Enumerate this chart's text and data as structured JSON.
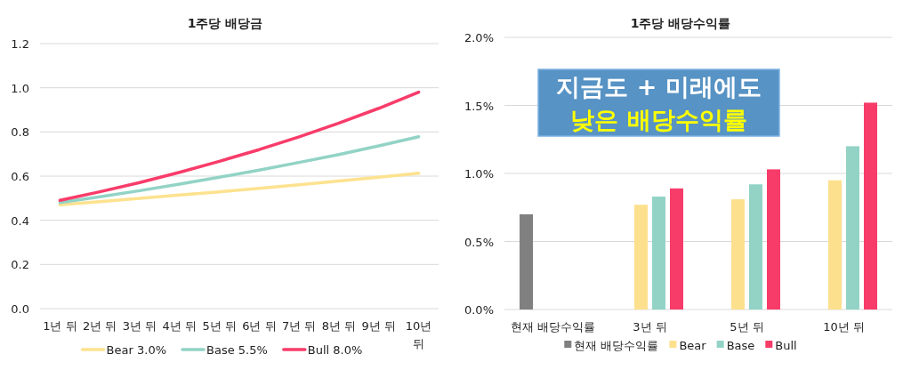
{
  "chart_data": [
    {
      "type": "line",
      "title": "1주당 배당금",
      "categories": [
        "1년 뒤",
        "2년 뒤",
        "3년 뒤",
        "4년 뒤",
        "5년 뒤",
        "6년 뒤",
        "7년 뒤",
        "8년 뒤",
        "9년 뒤",
        "10년 뒤"
      ],
      "series": [
        {
          "name": "Bear 3.0%",
          "color": "#fde28f",
          "values": [
            0.47,
            0.484,
            0.499,
            0.514,
            0.529,
            0.545,
            0.561,
            0.578,
            0.595,
            0.613
          ]
        },
        {
          "name": "Base 5.5%",
          "color": "#92d3c6",
          "values": [
            0.48,
            0.506,
            0.534,
            0.564,
            0.595,
            0.627,
            0.662,
            0.698,
            0.737,
            0.778
          ]
        },
        {
          "name": "Bull 8.0%",
          "color": "#f83c6a",
          "values": [
            0.49,
            0.529,
            0.571,
            0.617,
            0.667,
            0.72,
            0.778,
            0.84,
            0.907,
            0.98
          ]
        }
      ],
      "ylim": [
        0,
        1.2
      ],
      "yticks": [
        {
          "value": 0,
          "label": "0.0"
        },
        {
          "value": 0.2,
          "label": "0.2"
        },
        {
          "value": 0.4,
          "label": "0.4"
        },
        {
          "value": 0.6,
          "label": "0.6"
        },
        {
          "value": 0.8,
          "label": "0.8"
        },
        {
          "value": 1.0,
          "label": "1.0"
        },
        {
          "value": 1.2,
          "label": "1.2"
        }
      ],
      "grid": "y",
      "legend": "bottom",
      "marker": "none",
      "line_style": "solid"
    },
    {
      "type": "bar",
      "title": "1주당 배당수익률",
      "categories": [
        "현재 배당수익률",
        "3년 뒤",
        "5년 뒤",
        "10년 뒤"
      ],
      "series": [
        {
          "name": "현재 배당수익률",
          "color": "#808080",
          "values": [
            0.7,
            null,
            null,
            null
          ]
        },
        {
          "name": "Bear",
          "color": "#fde08e",
          "values": [
            null,
            0.77,
            0.81,
            0.95
          ]
        },
        {
          "name": "Base",
          "color": "#92d3c6",
          "values": [
            null,
            0.83,
            0.92,
            1.2
          ]
        },
        {
          "name": "Bull",
          "color": "#f83c6a",
          "values": [
            null,
            0.89,
            1.03,
            1.52
          ]
        }
      ],
      "ylim": [
        0,
        2.0
      ],
      "yticks": [
        {
          "value": 0,
          "label": "0.0%"
        },
        {
          "value": 0.5,
          "label": "0.5%"
        },
        {
          "value": 1.0,
          "label": "1.0%"
        },
        {
          "value": 1.5,
          "label": "1.5%"
        },
        {
          "value": 2.0,
          "label": "2.0%"
        }
      ],
      "annotations": [
        "지금도 + 미래에도",
        "낮은 배당수익률"
      ],
      "grid": "y",
      "legend": "bottom"
    }
  ]
}
